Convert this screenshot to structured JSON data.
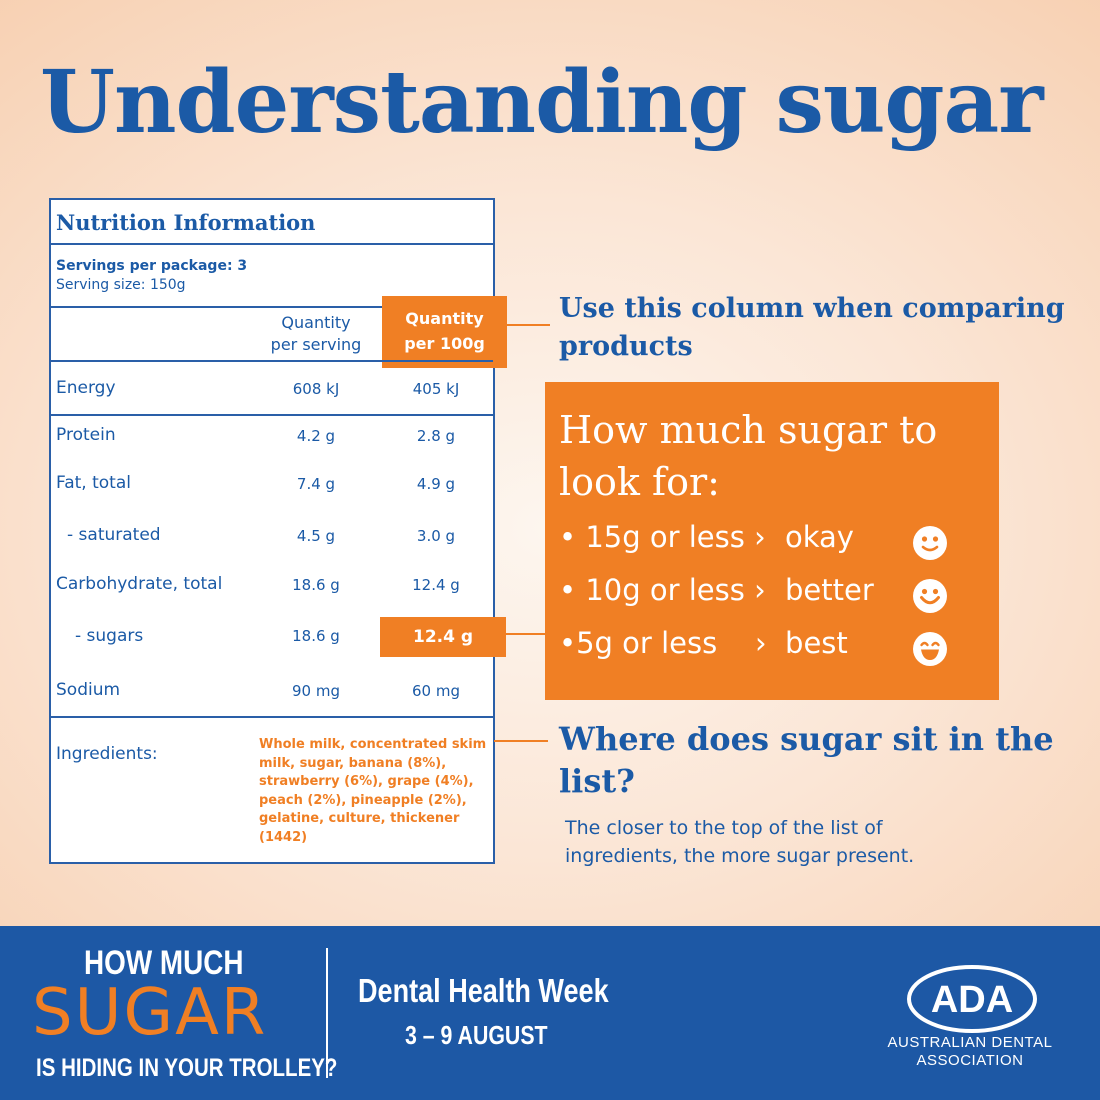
{
  "title": "Understanding sugar",
  "panel": {
    "heading": "Nutrition Information",
    "servings": "Servings per package: 3",
    "serving_size": "Serving size: 150g",
    "col_serving": [
      "Quantity",
      "per serving"
    ],
    "col_100g": [
      "Quantity",
      "per 100g"
    ],
    "rows": [
      {
        "label": "Energy",
        "per_serving": "608 kJ",
        "per_100g": "405 kJ"
      },
      {
        "label": "Protein",
        "per_serving": "4.2 g",
        "per_100g": "2.8 g"
      },
      {
        "label": "Fat, total",
        "per_serving": "7.4 g",
        "per_100g": "4.9 g"
      },
      {
        "label": "- saturated",
        "per_serving": "4.5 g",
        "per_100g": "3.0 g"
      },
      {
        "label": "Carbohydrate, total",
        "per_serving": "18.6 g",
        "per_100g": "12.4 g"
      },
      {
        "label": "- sugars",
        "per_serving": "18.6 g",
        "per_100g": "12.4 g"
      },
      {
        "label": "Sodium",
        "per_serving": "90 mg",
        "per_100g": "60 mg"
      }
    ],
    "ingredients_label": "Ingredients:",
    "ingredients_text": "Whole milk, concentrated skim milk, sugar, banana (8%), strawberry (6%), grape (4%), peach (2%), pineapple (2%), gelatine, culture, thickener (1442)"
  },
  "callout_column": "Use this column when comparing products",
  "sugar_guide": {
    "heading": "How much sugar to look for:",
    "items": [
      {
        "text": "15g or less",
        "rating": "okay",
        "icon": "smile-icon"
      },
      {
        "text": "10g or less",
        "rating": "better",
        "icon": "grin-icon"
      },
      {
        "text": "5g or less",
        "rating": "best",
        "icon": "laugh-icon"
      }
    ]
  },
  "callout_list": {
    "heading": "Where does sugar sit in the list?",
    "text": "The closer to the top of the list of ingredients, the more sugar present."
  },
  "footer": {
    "line1": "HOW MUCH",
    "line2": "SUGAR",
    "line3": "IS HIDING IN YOUR TROLLEY?",
    "event": "Dental Health Week",
    "dates": "3 – 9 AUGUST",
    "logo_text": "ADA",
    "org": "AUSTRALIAN DENTAL ASSOCIATION"
  },
  "colors": {
    "blue": "#1b5aa6",
    "orange": "#f07f24",
    "footer_blue": "#1d58a5"
  }
}
